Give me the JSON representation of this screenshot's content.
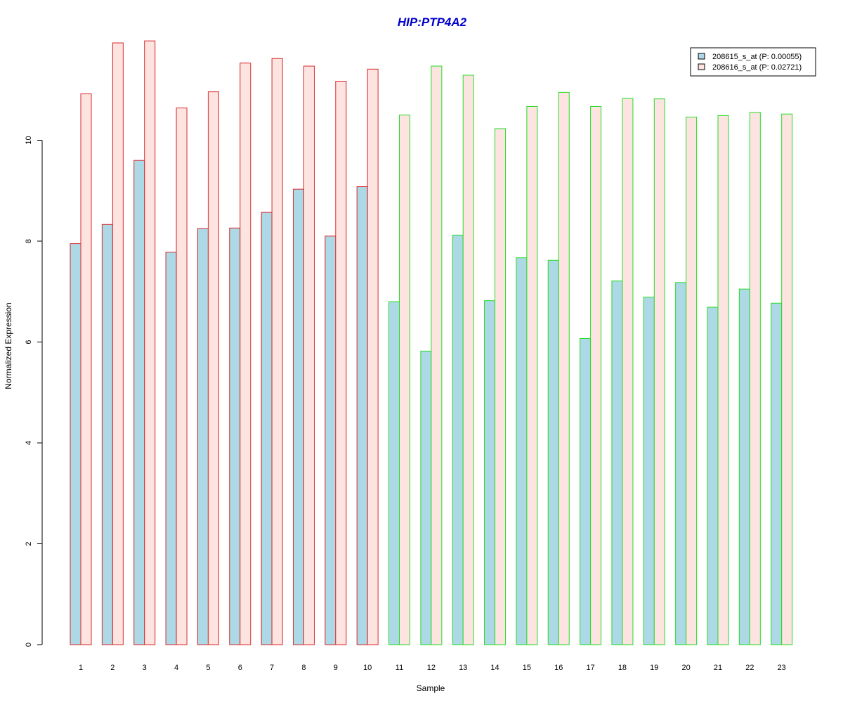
{
  "chart_data": {
    "type": "bar",
    "title": "HIP:PTP4A2",
    "xlabel": "Sample",
    "ylabel": "Normalized Expression",
    "categories": [
      "1",
      "2",
      "3",
      "4",
      "5",
      "6",
      "7",
      "8",
      "9",
      "10",
      "11",
      "12",
      "13",
      "14",
      "15",
      "16",
      "17",
      "18",
      "19",
      "20",
      "21",
      "22",
      "23"
    ],
    "group_border_colors": [
      "#d62728",
      "#d62728",
      "#d62728",
      "#d62728",
      "#d62728",
      "#d62728",
      "#d62728",
      "#d62728",
      "#d62728",
      "#d62728",
      "#22dd22",
      "#22dd22",
      "#22dd22",
      "#22dd22",
      "#22dd22",
      "#22dd22",
      "#22dd22",
      "#22dd22",
      "#22dd22",
      "#22dd22",
      "#22dd22",
      "#22dd22",
      "#22dd22"
    ],
    "series": [
      {
        "name": "208615_s_at (P: 0.00055)",
        "color": "#add8e6",
        "values": [
          7.95,
          8.33,
          9.6,
          7.78,
          8.25,
          8.26,
          8.57,
          9.03,
          8.1,
          9.08,
          6.8,
          5.82,
          8.12,
          6.82,
          7.67,
          7.62,
          6.07,
          7.21,
          6.89,
          7.18,
          6.69,
          7.05,
          6.77
        ]
      },
      {
        "name": "208616_s_at (P: 0.02721)",
        "color": "#fde4e1",
        "values": [
          10.92,
          11.93,
          11.97,
          10.64,
          10.96,
          11.53,
          11.62,
          11.47,
          11.17,
          11.41,
          10.5,
          11.47,
          11.29,
          10.23,
          10.67,
          10.95,
          10.67,
          10.83,
          10.82,
          10.46,
          10.49,
          10.55,
          10.52
        ]
      }
    ],
    "yticks": [
      "0",
      "2",
      "4",
      "6",
      "8",
      "10"
    ],
    "ylim": [
      0,
      12.2
    ],
    "title_color": "#0000cc",
    "grid": false,
    "legend_position": "top-right"
  }
}
